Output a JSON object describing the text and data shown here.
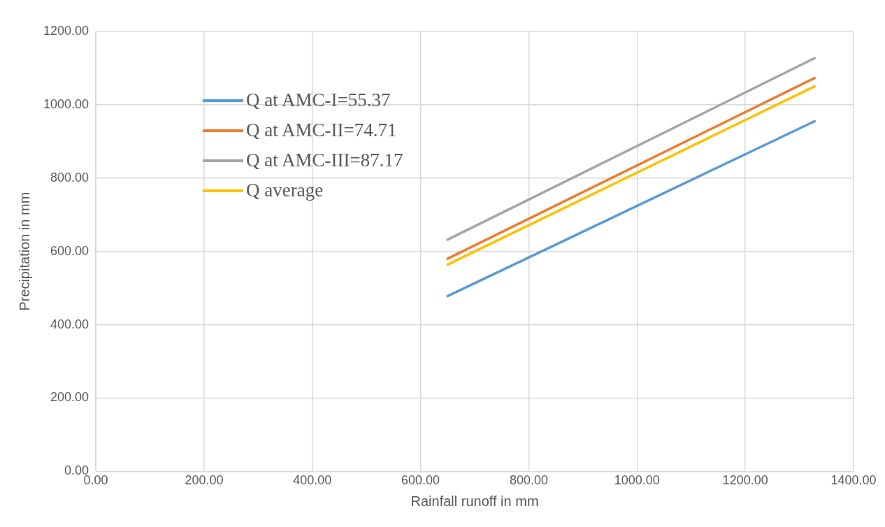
{
  "chart_data": {
    "type": "line",
    "xlabel": "Rainfall runoff in mm",
    "ylabel": "Precipitation in mm",
    "x": [
      650,
      1328
    ],
    "xlim": [
      0,
      1400
    ],
    "xticks": [
      {
        "value": 0,
        "label": "0.00"
      },
      {
        "value": 200,
        "label": "200.00"
      },
      {
        "value": 400,
        "label": "400.00"
      },
      {
        "value": 600,
        "label": "600.00"
      },
      {
        "value": 800,
        "label": "800.00"
      },
      {
        "value": 1000,
        "label": "1000.00"
      },
      {
        "value": 1200,
        "label": "1200.00"
      },
      {
        "value": 1400,
        "label": "1400.00"
      }
    ],
    "ylim": [
      0,
      1200
    ],
    "yticks": [
      {
        "value": 0,
        "label": "0.00"
      },
      {
        "value": 200,
        "label": "200.00"
      },
      {
        "value": 400,
        "label": "400.00"
      },
      {
        "value": 600,
        "label": "600.00"
      },
      {
        "value": 800,
        "label": "800.00"
      },
      {
        "value": 1000,
        "label": "1000.00"
      },
      {
        "value": 1200,
        "label": "1200.00"
      }
    ],
    "grid": true,
    "legend": "top left",
    "marker": "none",
    "line_style": "solid",
    "series": [
      {
        "name": "Q at AMC-I=55.37",
        "color": "#5b9bd5",
        "values": [
          478,
          955
        ]
      },
      {
        "name": "Q at AMC-II=74.71",
        "color": "#ed7d31",
        "values": [
          580,
          1073
        ]
      },
      {
        "name": "Q at AMC-III=87.17",
        "color": "#a5a5a5",
        "values": [
          632,
          1127
        ]
      },
      {
        "name": "Q average",
        "color": "#ffc000",
        "values": [
          564,
          1050
        ]
      }
    ]
  }
}
